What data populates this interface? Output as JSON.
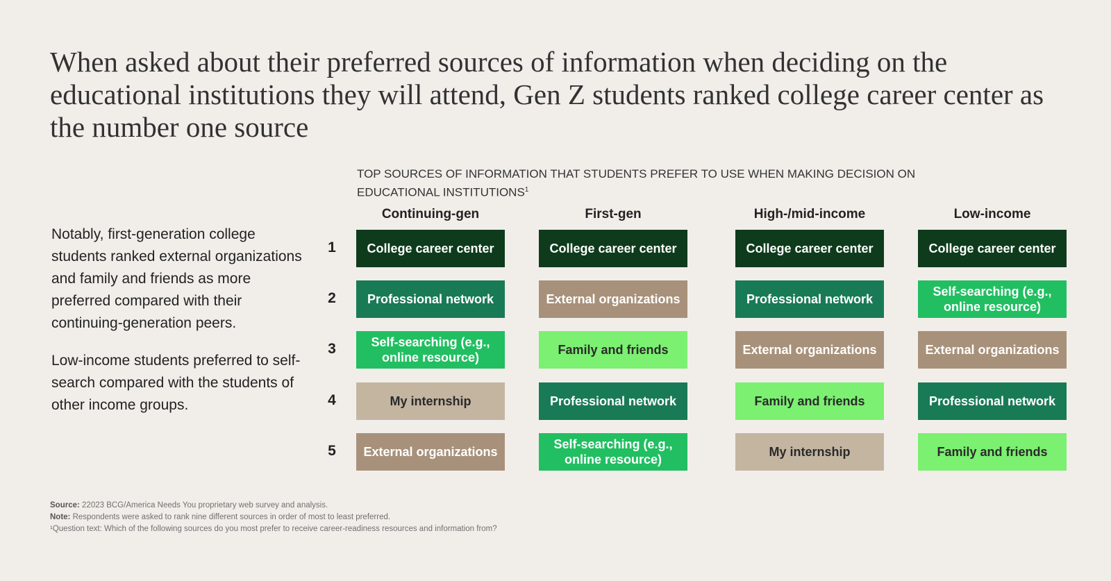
{
  "title": "When asked about their preferred sources of information when deciding on the educational institutions they will attend, Gen Z students ranked college career center as the number one source",
  "subtitle": "TOP SOURCES OF INFORMATION THAT STUDENTS PREFER TO USE WHEN MAKING DECISION ON EDUCATIONAL INSTITUTIONS",
  "subtitle_sup": "1",
  "side_text": [
    "Notably, first-generation college students ranked external organizations and family and friends as more preferred compared with their continuing-generation peers.",
    "Low-income students preferred to self-search compared with the students of other income groups."
  ],
  "colors": {
    "College career center": "#0e3b1c",
    "Professional network": "#197a56",
    "External organizations": "#a8917a",
    "Self-searching (e.g., online resource)": "#21bf61",
    "Family and friends": "#7bf071",
    "My internship": "#c4b5a1"
  },
  "dark_text": [
    "Family and friends",
    "My internship"
  ],
  "ranks": [
    "1",
    "2",
    "3",
    "4",
    "5"
  ],
  "columns": [
    {
      "header": "Continuing-gen",
      "items": [
        "College career center",
        "Professional network",
        "Self-searching (e.g., online resource)",
        "My internship",
        "External organizations"
      ]
    },
    {
      "header": "First-gen",
      "items": [
        "College career center",
        "External organizations",
        "Family and friends",
        "Professional network",
        "Self-searching (e.g., online resource)"
      ]
    },
    {
      "header": "High-/mid-income",
      "items": [
        "College career center",
        "Professional network",
        "External organizations",
        "Family and friends",
        "My internship"
      ]
    },
    {
      "header": "Low-income",
      "items": [
        "College career center",
        "Self-searching (e.g., online resource)",
        "External organizations",
        "Professional network",
        "Family and friends"
      ]
    }
  ],
  "footnotes": {
    "source_label": "Source:",
    "source": " 22023 BCG/America Needs You proprietary web survey and analysis.",
    "note_label": "Note:",
    "note": " Respondents were asked to rank nine different sources in order of most to least preferred.",
    "q": "¹Question text: Which of the following sources do you most prefer to receive career-readiness resources and information from?"
  }
}
